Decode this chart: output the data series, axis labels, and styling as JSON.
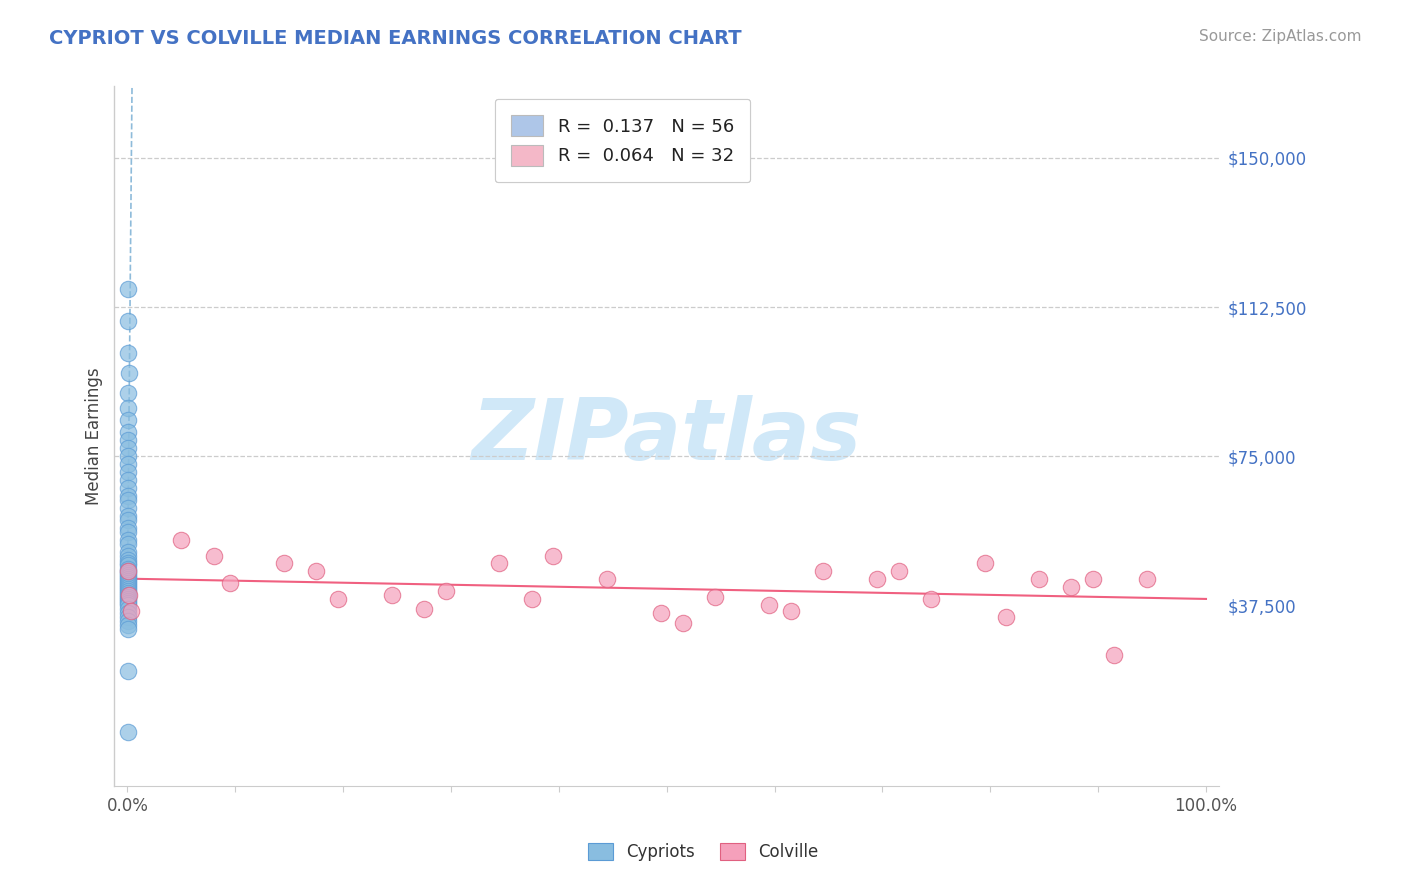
{
  "title": "CYPRIOT VS COLVILLE MEDIAN EARNINGS CORRELATION CHART",
  "source": "Source: ZipAtlas.com",
  "ylabel": "Median Earnings",
  "ytick_labels": [
    "$37,500",
    "$75,000",
    "$112,500",
    "$150,000"
  ],
  "ytick_values": [
    37500,
    75000,
    112500,
    150000
  ],
  "ylim": [
    -8000,
    168000
  ],
  "xlim": [
    -0.012,
    1.012
  ],
  "xtick_labels": [
    "0.0%",
    "100.0%"
  ],
  "xtick_positions": [
    0.0,
    1.0
  ],
  "cypriot_color": "#89bde0",
  "cypriot_edge_color": "#5b9bd5",
  "colville_color": "#f5a0bb",
  "colville_edge_color": "#e06080",
  "cypriot_reg_color": "#7aafd4",
  "colville_reg_color": "#f06080",
  "background_color": "#ffffff",
  "title_color": "#4472c4",
  "source_color": "#999999",
  "watermark_text": "ZIPatlas",
  "watermark_color": "#d0e8f8",
  "legend_r1": "R =  0.137   N = 56",
  "legend_r2": "R =  0.064   N = 32",
  "legend_color1": "#aec6e8",
  "legend_color2": "#f4b8c8",
  "bottom_legend": [
    "Cypriots",
    "Colville"
  ],
  "grid_color": "#cccccc",
  "spine_color": "#cccccc",
  "cypriot_x": [
    0.0004,
    0.0008,
    0.0005,
    0.0012,
    0.0003,
    0.0007,
    0.0006,
    0.0004,
    0.0009,
    0.0005,
    0.0006,
    0.0004,
    0.0008,
    0.001,
    0.0005,
    0.0003,
    0.0007,
    0.0004,
    0.0006,
    0.0003,
    0.0004,
    0.0005,
    0.0007,
    0.0003,
    0.0006,
    0.0005,
    0.0004,
    0.0008,
    0.0003,
    0.0005,
    0.0004,
    0.0005,
    0.0004,
    0.0007,
    0.0003,
    0.0005,
    0.0007,
    0.0004,
    0.0005,
    0.0003,
    0.0005,
    0.0003,
    0.0007,
    0.0003,
    0.0005,
    0.0003,
    0.0005,
    0.0004,
    0.0007,
    0.0009,
    0.0003,
    0.0005,
    0.0003,
    0.0005,
    0.0004,
    0.0007
  ],
  "cypriot_y": [
    117000,
    109000,
    101000,
    96000,
    91000,
    87000,
    84000,
    81000,
    79000,
    77000,
    75000,
    73000,
    71000,
    69000,
    67000,
    65000,
    64000,
    62000,
    60000,
    59000,
    57000,
    56000,
    54000,
    53000,
    51000,
    50000,
    49000,
    48000,
    47500,
    46500,
    46000,
    45500,
    45000,
    44500,
    44000,
    43500,
    43000,
    42500,
    42000,
    41500,
    41000,
    40500,
    40000,
    39500,
    39000,
    38500,
    38000,
    37500,
    36500,
    35500,
    21000,
    5500,
    34500,
    33500,
    32500,
    31500
  ],
  "colville_x": [
    0.0005,
    0.05,
    0.095,
    0.08,
    0.145,
    0.195,
    0.175,
    0.245,
    0.295,
    0.275,
    0.345,
    0.395,
    0.375,
    0.445,
    0.495,
    0.545,
    0.515,
    0.595,
    0.645,
    0.615,
    0.695,
    0.715,
    0.745,
    0.795,
    0.815,
    0.845,
    0.875,
    0.895,
    0.915,
    0.945,
    0.0015,
    0.0035
  ],
  "colville_y": [
    46000,
    54000,
    43000,
    50000,
    48000,
    39000,
    46000,
    40000,
    41000,
    36500,
    48000,
    50000,
    39000,
    44000,
    35500,
    39500,
    33000,
    37500,
    46000,
    36000,
    44000,
    46000,
    39000,
    48000,
    34500,
    44000,
    42000,
    44000,
    25000,
    44000,
    40000,
    36000
  ]
}
